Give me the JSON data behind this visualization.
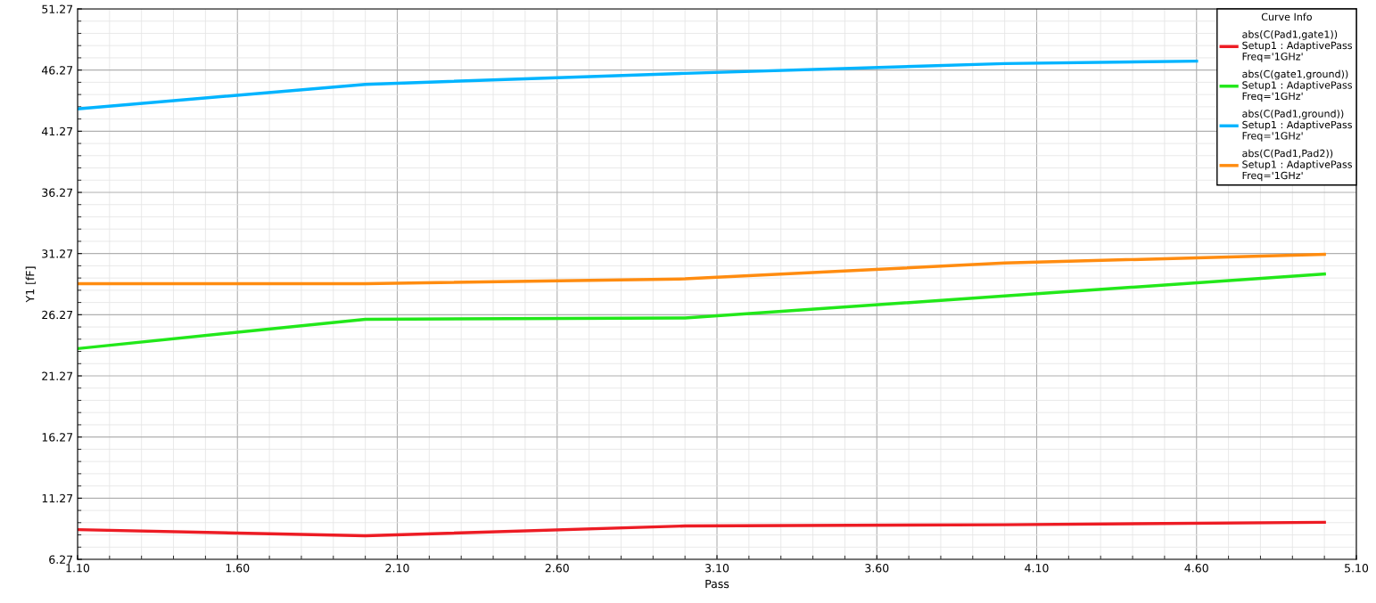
{
  "chart_data": {
    "type": "line",
    "xlabel": "Pass",
    "ylabel": "Y1 [fF]",
    "legend_title": "Curve Info",
    "xlim": [
      1.1,
      5.1
    ],
    "xticks": [
      {
        "value": 1.1,
        "label": "1.10"
      },
      {
        "value": 1.6,
        "label": "1.60"
      },
      {
        "value": 2.1,
        "label": "2.10"
      },
      {
        "value": 2.6,
        "label": "2.60"
      },
      {
        "value": 3.1,
        "label": "3.10"
      },
      {
        "value": 3.6,
        "label": "3.60"
      },
      {
        "value": 4.1,
        "label": "4.10"
      },
      {
        "value": 4.6,
        "label": "4.60"
      },
      {
        "value": 5.1,
        "label": "5.10"
      }
    ],
    "ylim": [
      6.27,
      51.27
    ],
    "yticks": [
      6.27,
      11.27,
      16.27,
      21.27,
      26.27,
      31.27,
      36.27,
      41.27,
      46.27,
      51.27
    ],
    "grid": true,
    "legend": "top right",
    "marker": "none",
    "line_style": "solid",
    "series": [
      {
        "name": "abs(C(Pad1,gate1))\nSetup1 : AdaptivePass\nFreq='1GHz'",
        "color": "#ed1c24",
        "x": [
          1.1,
          2.0,
          3.0,
          4.0,
          5.0
        ],
        "values": [
          8.7,
          8.2,
          9.0,
          9.1,
          9.3
        ]
      },
      {
        "name": "abs(C(gate1,ground))\nSetup1 : AdaptivePass\nFreq='1GHz'",
        "color": "#22e81a",
        "x": [
          1.1,
          2.0,
          3.0,
          4.0,
          5.0
        ],
        "values": [
          23.5,
          25.9,
          26.0,
          27.8,
          29.6
        ]
      },
      {
        "name": "abs(C(Pad1,ground))\nSetup1 : AdaptivePass\nFreq='1GHz'",
        "color": "#00b4ff",
        "x": [
          1.1,
          2.0,
          3.0,
          4.0,
          4.6
        ],
        "values": [
          43.1,
          45.1,
          46.0,
          46.8,
          47.0
        ]
      },
      {
        "name": "abs(C(Pad1,Pad2))\nSetup1 : AdaptivePass\nFreq='1GHz'",
        "color": "#ff8c10",
        "x": [
          1.1,
          2.0,
          3.0,
          4.0,
          5.0
        ],
        "values": [
          28.8,
          28.8,
          29.2,
          30.5,
          31.2
        ]
      }
    ]
  }
}
